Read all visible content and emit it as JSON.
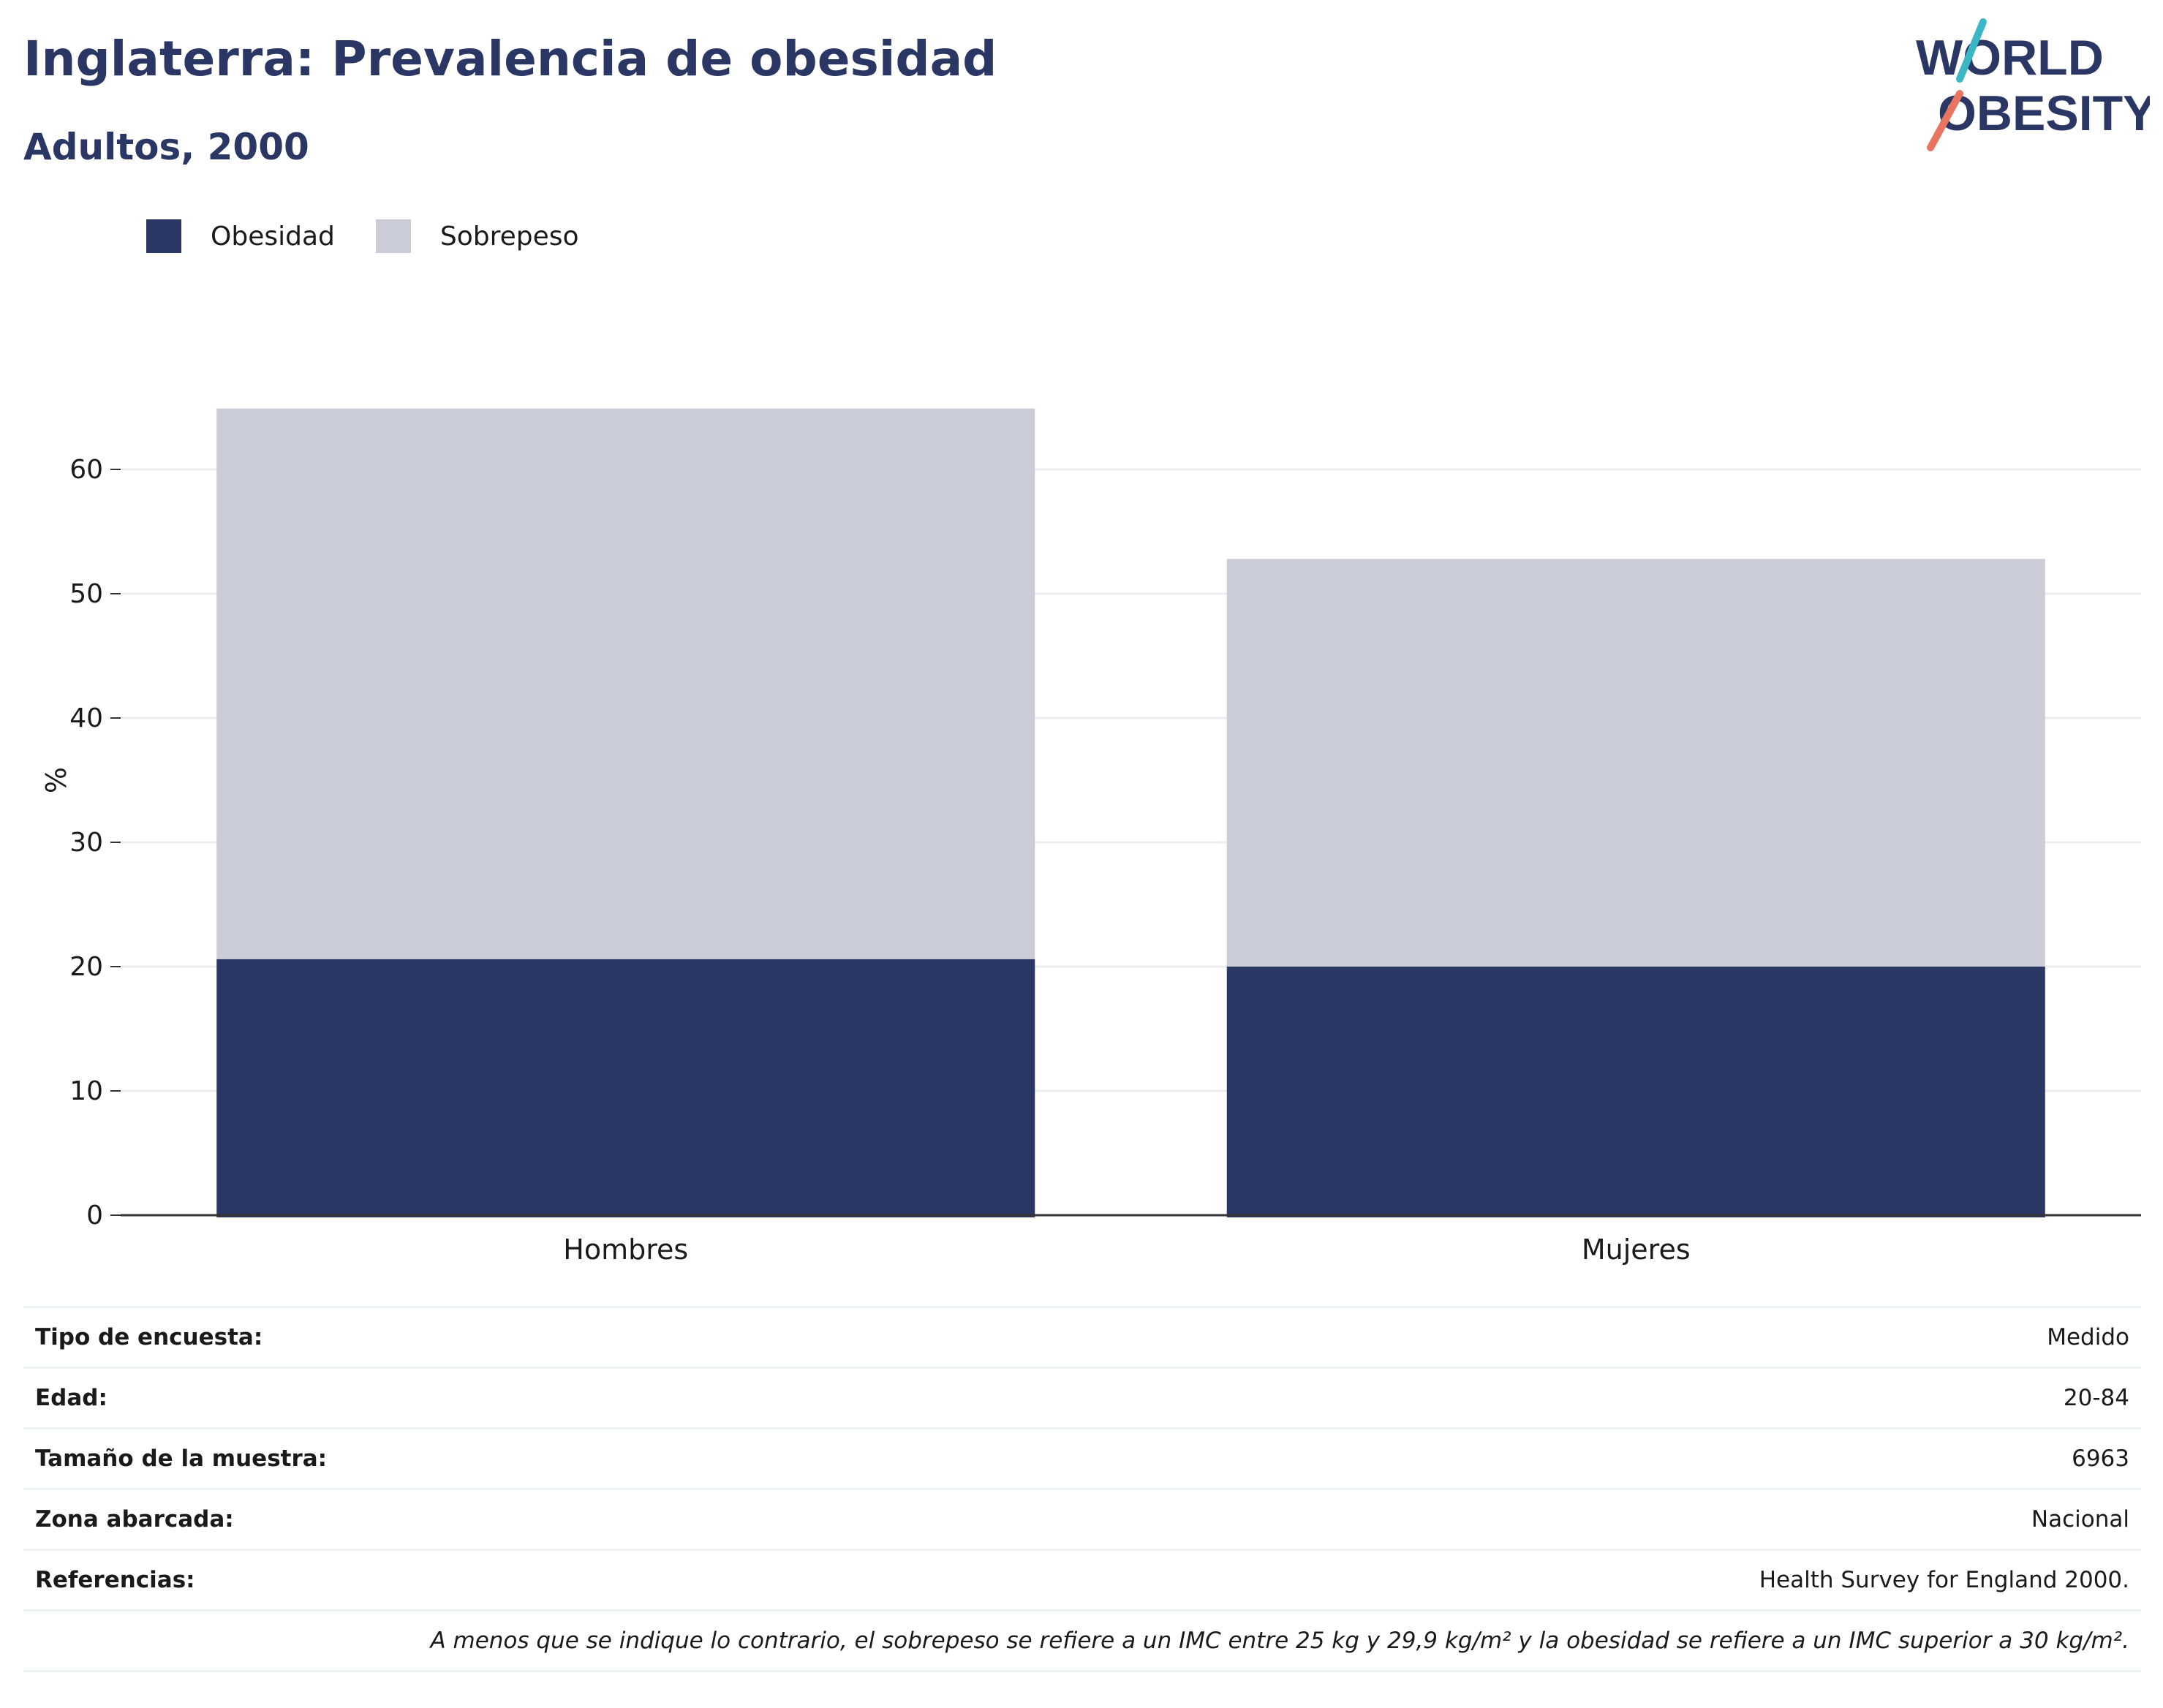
{
  "title": "Inglaterra: Prevalencia de obesidad",
  "subtitle": "Adultos, 2000",
  "logo": {
    "line1": "WORLD",
    "line2": "OBESITY",
    "colors": {
      "text": "#2a3663",
      "slash_top": "#3bb6c4",
      "slash_bottom": "#e9745f"
    }
  },
  "colors": {
    "obesidad": "#2a3663",
    "sobrepeso": "#caccd7",
    "grid": "#ececf0",
    "axis": "#333333"
  },
  "chart_data": {
    "type": "bar",
    "stacked": true,
    "categories": [
      "Hombres",
      "Mujeres"
    ],
    "series": [
      {
        "name": "Obesidad",
        "values": [
          20.6,
          20.0
        ]
      },
      {
        "name": "Sobrepeso",
        "values": [
          44.3,
          32.8
        ]
      }
    ],
    "ylabel": "%",
    "ylim": [
      0,
      70
    ],
    "yticks": [
      "0",
      "10",
      "20",
      "30",
      "40",
      "50",
      "60"
    ],
    "grid": true,
    "legend_position": "top-left"
  },
  "info": {
    "rows": [
      {
        "label": "Tipo de encuesta:",
        "value": "Medido"
      },
      {
        "label": "Edad:",
        "value": "20-84"
      },
      {
        "label": "Tamaño de la muestra:",
        "value": "6963"
      },
      {
        "label": "Zona abarcada:",
        "value": "Nacional"
      },
      {
        "label": "Referencias:",
        "value": "Health Survey for England 2000."
      }
    ],
    "note": "A menos que se indique lo contrario, el sobrepeso se refiere a un IMC entre 25 kg y 29,9 kg/m² y la obesidad se refiere a un IMC superior a 30 kg/m²."
  }
}
